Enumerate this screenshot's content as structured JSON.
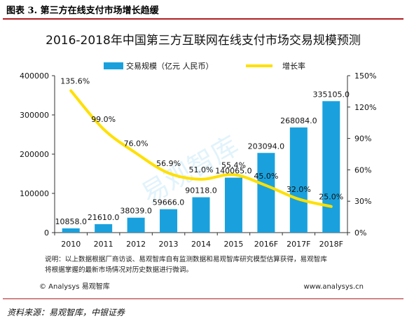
{
  "figure": {
    "caption": "图表 3. 第三方在线支付市场增长趋缓",
    "source": "资料来源：易观智库，中银证券"
  },
  "watermark": "易观智库",
  "footer": {
    "note_lines": [
      "说明：以上数据根据厂商访谈、易观智库自有监测数据和易观智库研究模型估算获得，易观智库",
      "将根据掌握的最新市场情况对历史数据进行微调。"
    ],
    "copyright": "© Analysys 易观智库",
    "website": "www.analysys.cn"
  },
  "colors": {
    "bar": "#1aa1dd",
    "line": "#ffe000",
    "text": "#111111",
    "axis": "#333333"
  },
  "chart_data": {
    "type": "bar",
    "title": "2016-2018年中国第三方互联网在线支付市场交易规模预测",
    "categories": [
      "2010",
      "2011",
      "2012",
      "2013",
      "2014",
      "2015",
      "2016F",
      "2017F",
      "2018F"
    ],
    "series": [
      {
        "name": "交易规模（亿元 人民币）",
        "type": "bar",
        "axis": "left",
        "values": [
          10858.0,
          21610.0,
          38039.0,
          59666.0,
          90118.0,
          140065.0,
          203094.0,
          268084.0,
          335105.0
        ],
        "labels": [
          "10858.0",
          "21610.0",
          "38039.0",
          "59666.0",
          "90118.0",
          "140065.0",
          "203094.0",
          "268084.0",
          "335105.0"
        ]
      },
      {
        "name": "增长率",
        "type": "line",
        "axis": "right",
        "values": [
          135.6,
          99.0,
          76.0,
          56.9,
          51.0,
          55.4,
          45.0,
          32.0,
          25.0
        ],
        "labels": [
          "135.6%",
          "99.0%",
          "76.0%",
          "56.9%",
          "51.0%",
          "55.4%",
          "45.0%",
          "32.0%",
          "25.0%"
        ]
      }
    ],
    "y_left": {
      "min": 0,
      "max": 400000,
      "ticks": [
        "0",
        "100000",
        "200000",
        "300000",
        "400000"
      ]
    },
    "y_right": {
      "min": 0,
      "max": 150,
      "ticks": [
        "0%",
        "30%",
        "60%",
        "90%",
        "120%",
        "150%"
      ]
    },
    "grid": false,
    "legend_position": "top"
  }
}
